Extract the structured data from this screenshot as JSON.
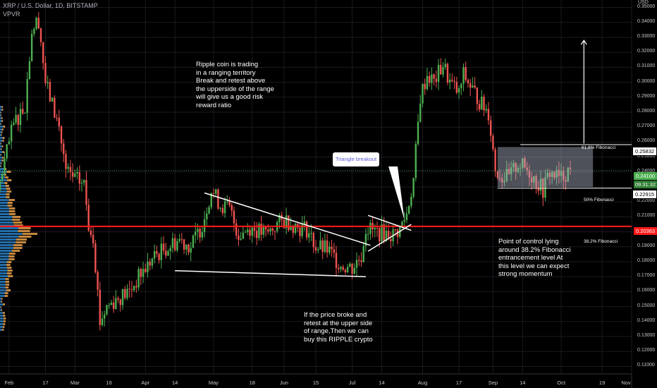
{
  "header": {
    "symbol": "XRP / U.S. Dollar, 1D, BITSTAMP",
    "indicator": "VPVR"
  },
  "notes": {
    "range": "Ripple coin is trading\nin a ranging territory\nBreak and retest above\nthe upperside of the range\nwill give us a good risk\nreward ratio",
    "buy": "If the price broke and\nretest at the upper side\nof range,Then we can\nbuy this RIPPLE crypto",
    "poc": "Point of control lying\naround 38.2% Fibonacci\nentrancement level At\nthis level we can expect\nstrong momentum",
    "triangle": "Triangle breakout"
  },
  "levels": {
    "fib618": {
      "label": "61.8% Fibonacci",
      "price": "0.25832"
    },
    "current": {
      "price": "0.24100",
      "countdown": "09:31:32"
    },
    "fib50": {
      "label": "50% Fibonacci",
      "price": "0.22915"
    },
    "fib382": {
      "label": "38.2% Fibonacci",
      "price": "0.20363"
    }
  },
  "colors": {
    "up": "#4caf50",
    "down": "#ef5350",
    "poc": "#ff1a1a",
    "white": "#ffffff",
    "grid": "#1b1b22",
    "vpUp": "#2a7fc4",
    "vpDown": "#e8a04a"
  },
  "chart_data": {
    "type": "candlestick",
    "title": "XRP / U.S. Dollar, 1D, BITSTAMP",
    "axis_unit": "USD",
    "ylim": [
      0.105,
      0.355
    ],
    "y_ticks": [
      "0.35000",
      "0.34000",
      "0.33000",
      "0.32000",
      "0.31000",
      "0.30000",
      "0.29000",
      "0.28000",
      "0.27000",
      "0.26000",
      "0.25000",
      "0.24000",
      "0.23000",
      "0.22000",
      "0.21000",
      "0.20000",
      "0.19000",
      "0.18000",
      "0.17000",
      "0.16000",
      "0.15000",
      "0.14000",
      "0.13000",
      "0.12000",
      "0.11000"
    ],
    "x_ticks": [
      "Feb",
      "17",
      "Mar",
      "16",
      "Apr",
      "14",
      "May",
      "18",
      "Jun",
      "15",
      "Jul",
      "14",
      "Aug",
      "17",
      "Sep",
      "14",
      "Oct",
      "19",
      "Nov"
    ],
    "x_range_days": [
      "2020-01-28",
      "2020-11-01"
    ],
    "path_points": [
      [
        "2020-01-28",
        0.228
      ],
      [
        "2020-02-04",
        0.272
      ],
      [
        "2020-02-09",
        0.285
      ],
      [
        "2020-02-12",
        0.335
      ],
      [
        "2020-02-15",
        0.342
      ],
      [
        "2020-02-18",
        0.3
      ],
      [
        "2020-02-21",
        0.285
      ],
      [
        "2020-02-24",
        0.27
      ],
      [
        "2020-02-27",
        0.24
      ],
      [
        "2020-03-02",
        0.235
      ],
      [
        "2020-03-06",
        0.232
      ],
      [
        "2020-03-08",
        0.205
      ],
      [
        "2020-03-10",
        0.198
      ],
      [
        "2020-03-13",
        0.14
      ],
      [
        "2020-03-16",
        0.15
      ],
      [
        "2020-03-20",
        0.155
      ],
      [
        "2020-03-26",
        0.16
      ],
      [
        "2020-03-31",
        0.172
      ],
      [
        "2020-04-07",
        0.185
      ],
      [
        "2020-04-12",
        0.19
      ],
      [
        "2020-04-17",
        0.195
      ],
      [
        "2020-04-22",
        0.19
      ],
      [
        "2020-04-27",
        0.205
      ],
      [
        "2020-05-01",
        0.228
      ],
      [
        "2020-05-05",
        0.218
      ],
      [
        "2020-05-09",
        0.215
      ],
      [
        "2020-05-13",
        0.198
      ],
      [
        "2020-05-18",
        0.203
      ],
      [
        "2020-05-25",
        0.198
      ],
      [
        "2020-05-30",
        0.205
      ],
      [
        "2020-06-03",
        0.208
      ],
      [
        "2020-06-08",
        0.203
      ],
      [
        "2020-06-12",
        0.202
      ],
      [
        "2020-06-16",
        0.19
      ],
      [
        "2020-06-21",
        0.188
      ],
      [
        "2020-06-27",
        0.178
      ],
      [
        "2020-07-02",
        0.176
      ],
      [
        "2020-07-06",
        0.184
      ],
      [
        "2020-07-08",
        0.203
      ],
      [
        "2020-07-12",
        0.2
      ],
      [
        "2020-07-16",
        0.199
      ],
      [
        "2020-07-20",
        0.198
      ],
      [
        "2020-07-23",
        0.202
      ],
      [
        "2020-07-26",
        0.212
      ],
      [
        "2020-07-29",
        0.235
      ],
      [
        "2020-08-01",
        0.29
      ],
      [
        "2020-08-04",
        0.305
      ],
      [
        "2020-08-07",
        0.3
      ],
      [
        "2020-08-11",
        0.312
      ],
      [
        "2020-08-14",
        0.3
      ],
      [
        "2020-08-18",
        0.292
      ],
      [
        "2020-08-20",
        0.305
      ],
      [
        "2020-08-24",
        0.295
      ],
      [
        "2020-08-28",
        0.285
      ],
      [
        "2020-08-31",
        0.28
      ],
      [
        "2020-09-03",
        0.242
      ],
      [
        "2020-09-06",
        0.237
      ],
      [
        "2020-09-09",
        0.236
      ],
      [
        "2020-09-13",
        0.246
      ],
      [
        "2020-09-18",
        0.24
      ],
      [
        "2020-09-22",
        0.232
      ],
      [
        "2020-09-24",
        0.228
      ],
      [
        "2020-09-27",
        0.24
      ],
      [
        "2020-09-30",
        0.237
      ],
      [
        "2020-10-02",
        0.236
      ],
      [
        "2020-10-05",
        0.241
      ]
    ]
  }
}
